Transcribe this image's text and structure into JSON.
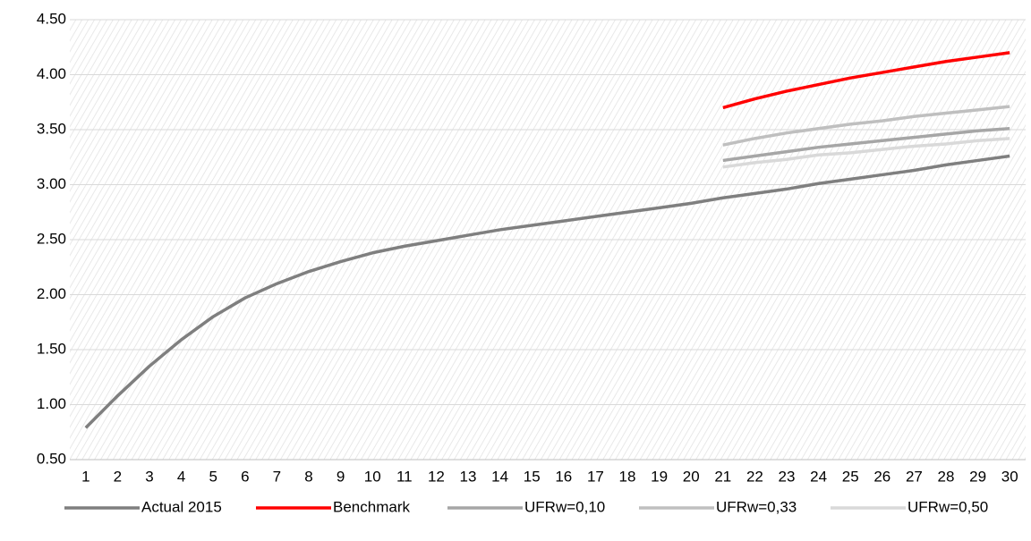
{
  "chart_data": {
    "type": "line",
    "categories": [
      "1",
      "2",
      "3",
      "4",
      "5",
      "6",
      "7",
      "8",
      "9",
      "10",
      "11",
      "12",
      "13",
      "14",
      "15",
      "16",
      "17",
      "18",
      "19",
      "20",
      "21",
      "22",
      "23",
      "24",
      "25",
      "26",
      "27",
      "28",
      "29",
      "30"
    ],
    "series": [
      {
        "name": "Actual 2015",
        "color": "#7f7f7f",
        "values": [
          0.79,
          1.08,
          1.35,
          1.59,
          1.8,
          1.97,
          2.1,
          2.21,
          2.3,
          2.38,
          2.44,
          2.49,
          2.54,
          2.59,
          2.63,
          2.67,
          2.71,
          2.75,
          2.79,
          2.83,
          2.88,
          2.92,
          2.96,
          3.01,
          3.05,
          3.09,
          3.13,
          3.18,
          3.22,
          3.26
        ]
      },
      {
        "name": "Benchmark",
        "color": "#ff0000",
        "values": [
          null,
          null,
          null,
          null,
          null,
          null,
          null,
          null,
          null,
          null,
          null,
          null,
          null,
          null,
          null,
          null,
          null,
          null,
          null,
          null,
          3.7,
          3.78,
          3.85,
          3.91,
          3.97,
          4.02,
          4.07,
          4.12,
          4.16,
          4.2
        ]
      },
      {
        "name": "UFRw=0,10",
        "color": "#a6a6a6",
        "values": [
          null,
          null,
          null,
          null,
          null,
          null,
          null,
          null,
          null,
          null,
          null,
          null,
          null,
          null,
          null,
          null,
          null,
          null,
          null,
          null,
          3.22,
          3.26,
          3.3,
          3.34,
          3.37,
          3.4,
          3.43,
          3.46,
          3.49,
          3.51
        ]
      },
      {
        "name": "UFRw=0,33",
        "color": "#bfbfbf",
        "values": [
          null,
          null,
          null,
          null,
          null,
          null,
          null,
          null,
          null,
          null,
          null,
          null,
          null,
          null,
          null,
          null,
          null,
          null,
          null,
          null,
          3.36,
          3.42,
          3.47,
          3.51,
          3.55,
          3.58,
          3.62,
          3.65,
          3.68,
          3.71
        ]
      },
      {
        "name": "UFRw=0,50",
        "color": "#d9d9d9",
        "values": [
          null,
          null,
          null,
          null,
          null,
          null,
          null,
          null,
          null,
          null,
          null,
          null,
          null,
          null,
          null,
          null,
          null,
          null,
          null,
          null,
          3.16,
          3.2,
          3.23,
          3.27,
          3.29,
          3.32,
          3.35,
          3.37,
          3.4,
          3.42
        ]
      }
    ],
    "ylim": [
      0.5,
      4.5
    ],
    "yticks": [
      {
        "value": 0.5,
        "label": "0.50"
      },
      {
        "value": 1,
        "label": "1.00"
      },
      {
        "value": 1.5,
        "label": "1.50"
      },
      {
        "value": 2,
        "label": "2.00"
      },
      {
        "value": 2.5,
        "label": "2.50"
      },
      {
        "value": 3,
        "label": "3.00"
      },
      {
        "value": 3.5,
        "label": "3.50"
      },
      {
        "value": 4,
        "label": "4.00"
      },
      {
        "value": 4.5,
        "label": "4.50"
      }
    ],
    "grid": true,
    "legend": "bottom"
  }
}
